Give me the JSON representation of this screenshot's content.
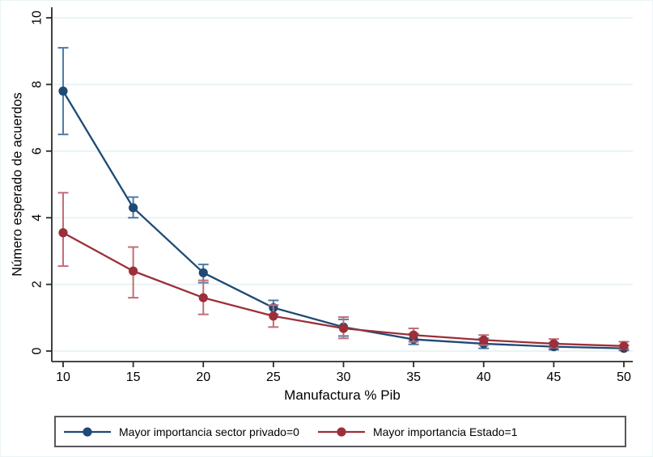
{
  "chart_data": {
    "type": "line",
    "title": "",
    "xlabel": "Manufactura % Pib",
    "ylabel": "Número esperado de acuerdos",
    "x": [
      10,
      15,
      20,
      25,
      30,
      35,
      40,
      45,
      50
    ],
    "xticks": [
      10,
      15,
      20,
      25,
      30,
      35,
      40,
      45,
      50
    ],
    "yticks": [
      0,
      2,
      4,
      6,
      8,
      10
    ],
    "xlim": [
      9.2,
      50.6
    ],
    "ylim": [
      -0.3,
      10.3
    ],
    "grid": "horizontal",
    "grid_color": "#e4f1f1",
    "axis_color": "#2b2b2b",
    "tick_label_color": "#000000",
    "legend_position": "bottom",
    "error_bars": true,
    "series": [
      {
        "name": "Mayor importancia sector privado=0",
        "color": "#1e4a74",
        "ci_color": "#4e7ba7",
        "values": [
          7.8,
          4.3,
          2.35,
          1.3,
          0.72,
          0.35,
          0.22,
          0.13,
          0.08
        ],
        "ci_low": [
          6.5,
          4.0,
          2.05,
          1.1,
          0.45,
          0.2,
          0.08,
          0.04,
          0.02
        ],
        "ci_high": [
          9.1,
          4.62,
          2.6,
          1.52,
          0.95,
          0.52,
          0.38,
          0.25,
          0.17
        ]
      },
      {
        "name": "Mayor importancia Estado=1",
        "color": "#9c2f3a",
        "ci_color": "#c26d76",
        "values": [
          3.55,
          2.4,
          1.6,
          1.05,
          0.68,
          0.48,
          0.33,
          0.22,
          0.15
        ],
        "ci_low": [
          2.55,
          1.6,
          1.1,
          0.72,
          0.38,
          0.28,
          0.18,
          0.1,
          0.05
        ],
        "ci_high": [
          4.75,
          3.12,
          2.12,
          1.38,
          1.02,
          0.68,
          0.48,
          0.36,
          0.28
        ]
      }
    ]
  },
  "legend": {
    "border_color": "#58595b"
  }
}
